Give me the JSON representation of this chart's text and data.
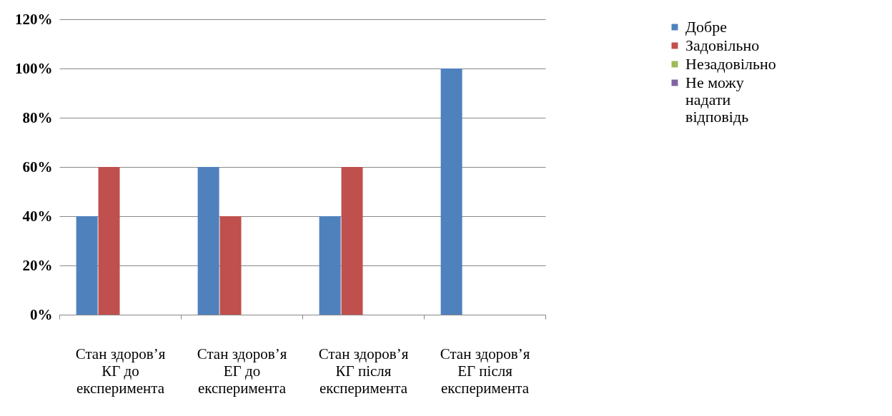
{
  "chart_data": {
    "type": "bar",
    "categories": [
      "Стан здоров’я КГ до експеримента",
      "Стан здоров’я ЕГ до експеримента",
      "Стан здоров’я КГ після експеримента",
      "Стан здоров’я ЕГ після експеримента"
    ],
    "series": [
      {
        "name": "Добре",
        "color": "#4f81bd",
        "values": [
          40,
          60,
          40,
          100
        ]
      },
      {
        "name": "Задовільно",
        "color": "#c0504d",
        "values": [
          60,
          40,
          60,
          0
        ]
      },
      {
        "name": "Незадовільно",
        "color": "#9bbb59",
        "values": [
          0,
          0,
          0,
          0
        ]
      },
      {
        "name": "Не можу надати відповідь",
        "color": "#8064a2",
        "values": [
          0,
          0,
          0,
          0
        ]
      }
    ],
    "ylim": [
      0,
      120
    ],
    "yticks": [
      {
        "value": 0,
        "label": "0%"
      },
      {
        "value": 20,
        "label": "20%"
      },
      {
        "value": 40,
        "label": "40%"
      },
      {
        "value": 60,
        "label": "60%"
      },
      {
        "value": 80,
        "label": "80%"
      },
      {
        "value": 100,
        "label": "100%"
      },
      {
        "value": 120,
        "label": "120%"
      }
    ],
    "grid": "y",
    "legend": "top right"
  }
}
